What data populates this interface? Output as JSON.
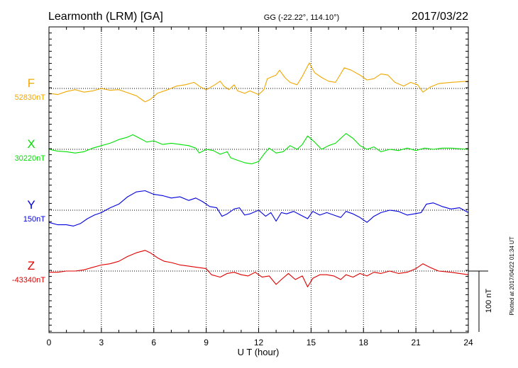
{
  "header": {
    "station": "Learmonth (LRM)  [GA]",
    "coords": "GG (-22.22°, 114.10°)",
    "date": "2017/03/22"
  },
  "footer_note": "Plotted at 2017/04/22 01:34 UT",
  "chart_data": {
    "type": "line",
    "xlabel": "U T (hour)",
    "xlim": [
      0,
      24
    ],
    "xticks": [
      "0",
      "3",
      "6",
      "9",
      "12",
      "15",
      "18",
      "21",
      "24"
    ],
    "scale_bar_label": "100 nT",
    "scale_bar_nT": 100,
    "series": [
      {
        "name": "F",
        "baseline_label": "52830nT",
        "color": "#f0a800",
        "points": [
          [
            0,
            -8
          ],
          [
            0.5,
            -10
          ],
          [
            1,
            -5
          ],
          [
            1.5,
            -2
          ],
          [
            2,
            -6
          ],
          [
            2.5,
            -4
          ],
          [
            3,
            0
          ],
          [
            3.5,
            -3
          ],
          [
            4,
            -2
          ],
          [
            4.5,
            -7
          ],
          [
            5,
            -12
          ],
          [
            5.3,
            -18
          ],
          [
            5.5,
            -22
          ],
          [
            5.8,
            -18
          ],
          [
            6.2,
            -8
          ],
          [
            6.8,
            -2
          ],
          [
            7.3,
            4
          ],
          [
            7.8,
            6
          ],
          [
            8.3,
            10
          ],
          [
            8.7,
            2
          ],
          [
            9,
            -2
          ],
          [
            9.5,
            6
          ],
          [
            9.8,
            12
          ],
          [
            10,
            4
          ],
          [
            10.3,
            -2
          ],
          [
            10.6,
            6
          ],
          [
            10.8,
            -4
          ],
          [
            11.2,
            -8
          ],
          [
            11.5,
            -4
          ],
          [
            12,
            -10
          ],
          [
            12.3,
            -2
          ],
          [
            12.5,
            16
          ],
          [
            13,
            22
          ],
          [
            13.2,
            30
          ],
          [
            13.5,
            18
          ],
          [
            13.8,
            10
          ],
          [
            14.2,
            6
          ],
          [
            14.5,
            20
          ],
          [
            14.9,
            42
          ],
          [
            15.2,
            26
          ],
          [
            15.6,
            18
          ],
          [
            16,
            12
          ],
          [
            16.4,
            10
          ],
          [
            16.9,
            34
          ],
          [
            17.3,
            30
          ],
          [
            17.8,
            22
          ],
          [
            18.2,
            14
          ],
          [
            18.6,
            16
          ],
          [
            19,
            24
          ],
          [
            19.4,
            22
          ],
          [
            19.8,
            10
          ],
          [
            20.3,
            4
          ],
          [
            20.7,
            10
          ],
          [
            21.1,
            6
          ],
          [
            21.4,
            -6
          ],
          [
            21.8,
            2
          ],
          [
            22.3,
            8
          ],
          [
            23,
            10
          ],
          [
            24,
            12
          ]
        ]
      },
      {
        "name": "X",
        "baseline_label": "30220nT",
        "color": "#00e000",
        "points": [
          [
            0,
            0
          ],
          [
            0.5,
            -3
          ],
          [
            1,
            -4
          ],
          [
            1.5,
            -6
          ],
          [
            2,
            -4
          ],
          [
            2.5,
            2
          ],
          [
            3,
            6
          ],
          [
            3.5,
            10
          ],
          [
            4,
            16
          ],
          [
            4.5,
            20
          ],
          [
            4.8,
            24
          ],
          [
            5.2,
            18
          ],
          [
            5.6,
            12
          ],
          [
            6,
            14
          ],
          [
            6.5,
            8
          ],
          [
            7,
            10
          ],
          [
            7.5,
            8
          ],
          [
            8,
            6
          ],
          [
            8.4,
            2
          ],
          [
            8.6,
            -6
          ],
          [
            9,
            0
          ],
          [
            9.4,
            -2
          ],
          [
            9.8,
            -8
          ],
          [
            10.2,
            -4
          ],
          [
            10.4,
            -14
          ],
          [
            10.8,
            -18
          ],
          [
            11.2,
            -22
          ],
          [
            11.6,
            -24
          ],
          [
            12,
            -20
          ],
          [
            12.3,
            -8
          ],
          [
            12.6,
            2
          ],
          [
            13,
            -6
          ],
          [
            13.4,
            -4
          ],
          [
            13.8,
            6
          ],
          [
            14.2,
            0
          ],
          [
            14.5,
            8
          ],
          [
            14.8,
            22
          ],
          [
            15.2,
            12
          ],
          [
            15.6,
            0
          ],
          [
            16,
            6
          ],
          [
            16.4,
            10
          ],
          [
            16.7,
            18
          ],
          [
            17,
            26
          ],
          [
            17.4,
            18
          ],
          [
            17.8,
            6
          ],
          [
            18.2,
            0
          ],
          [
            18.6,
            4
          ],
          [
            19,
            -4
          ],
          [
            19.5,
            0
          ],
          [
            20,
            -2
          ],
          [
            20.5,
            2
          ],
          [
            21,
            -2
          ],
          [
            21.5,
            2
          ],
          [
            22,
            0
          ],
          [
            22.5,
            2
          ],
          [
            23,
            2
          ],
          [
            24,
            0
          ]
        ]
      },
      {
        "name": "Y",
        "baseline_label": "150nT",
        "color": "#0000e0",
        "points": [
          [
            0,
            -20
          ],
          [
            0.5,
            -24
          ],
          [
            1,
            -24
          ],
          [
            1.4,
            -26
          ],
          [
            1.8,
            -22
          ],
          [
            2.2,
            -14
          ],
          [
            2.6,
            -8
          ],
          [
            3,
            -4
          ],
          [
            3.5,
            4
          ],
          [
            4,
            10
          ],
          [
            4.5,
            22
          ],
          [
            5,
            30
          ],
          [
            5.5,
            32
          ],
          [
            6,
            26
          ],
          [
            6.5,
            24
          ],
          [
            7,
            20
          ],
          [
            7.5,
            22
          ],
          [
            8,
            16
          ],
          [
            8.4,
            20
          ],
          [
            8.8,
            14
          ],
          [
            9.2,
            6
          ],
          [
            9.6,
            4
          ],
          [
            9.9,
            -10
          ],
          [
            10.2,
            -6
          ],
          [
            10.6,
            2
          ],
          [
            10.9,
            4
          ],
          [
            11.2,
            -8
          ],
          [
            11.5,
            -6
          ],
          [
            12,
            0
          ],
          [
            12.4,
            -10
          ],
          [
            12.7,
            -4
          ],
          [
            13,
            -18
          ],
          [
            13.3,
            -4
          ],
          [
            13.6,
            -6
          ],
          [
            14,
            -2
          ],
          [
            14.4,
            -8
          ],
          [
            14.8,
            -14
          ],
          [
            15.1,
            -2
          ],
          [
            15.5,
            -8
          ],
          [
            15.9,
            -4
          ],
          [
            16.3,
            -8
          ],
          [
            16.7,
            -12
          ],
          [
            17,
            -2
          ],
          [
            17.4,
            -6
          ],
          [
            17.8,
            -12
          ],
          [
            18.2,
            -20
          ],
          [
            18.6,
            -10
          ],
          [
            19,
            -4
          ],
          [
            19.5,
            0
          ],
          [
            20,
            -2
          ],
          [
            20.5,
            -8
          ],
          [
            20.9,
            -6
          ],
          [
            21.3,
            -4
          ],
          [
            21.6,
            10
          ],
          [
            22,
            12
          ],
          [
            22.5,
            6
          ],
          [
            23,
            2
          ],
          [
            23.5,
            4
          ],
          [
            24,
            -4
          ]
        ]
      },
      {
        "name": "Z",
        "baseline_label": "-43340nT",
        "color": "#e00000",
        "points": [
          [
            0,
            -2
          ],
          [
            0.5,
            -2
          ],
          [
            1,
            0
          ],
          [
            1.5,
            0
          ],
          [
            2,
            2
          ],
          [
            2.5,
            6
          ],
          [
            3,
            10
          ],
          [
            3.5,
            12
          ],
          [
            4,
            16
          ],
          [
            4.5,
            24
          ],
          [
            5,
            30
          ],
          [
            5.5,
            34
          ],
          [
            5.8,
            30
          ],
          [
            6.2,
            22
          ],
          [
            6.6,
            16
          ],
          [
            7,
            14
          ],
          [
            7.5,
            10
          ],
          [
            8,
            8
          ],
          [
            8.5,
            6
          ],
          [
            9,
            4
          ],
          [
            9.3,
            -6
          ],
          [
            9.8,
            -10
          ],
          [
            10.2,
            -4
          ],
          [
            10.6,
            -2
          ],
          [
            11,
            -6
          ],
          [
            11.4,
            -8
          ],
          [
            11.8,
            -2
          ],
          [
            12.2,
            -10
          ],
          [
            12.6,
            -8
          ],
          [
            13,
            -22
          ],
          [
            13.3,
            -14
          ],
          [
            13.7,
            -4
          ],
          [
            14.1,
            -14
          ],
          [
            14.5,
            -8
          ],
          [
            14.8,
            -26
          ],
          [
            15.1,
            -12
          ],
          [
            15.5,
            -6
          ],
          [
            15.9,
            -6
          ],
          [
            16.3,
            -8
          ],
          [
            16.7,
            -14
          ],
          [
            17,
            -6
          ],
          [
            17.4,
            -10
          ],
          [
            17.8,
            -4
          ],
          [
            18.2,
            -8
          ],
          [
            18.6,
            -2
          ],
          [
            19,
            -4
          ],
          [
            19.5,
            0
          ],
          [
            20,
            -4
          ],
          [
            20.5,
            -2
          ],
          [
            21,
            4
          ],
          [
            21.4,
            12
          ],
          [
            21.8,
            6
          ],
          [
            22.3,
            0
          ],
          [
            23,
            -2
          ],
          [
            23.5,
            -4
          ],
          [
            24,
            -6
          ]
        ]
      }
    ]
  }
}
